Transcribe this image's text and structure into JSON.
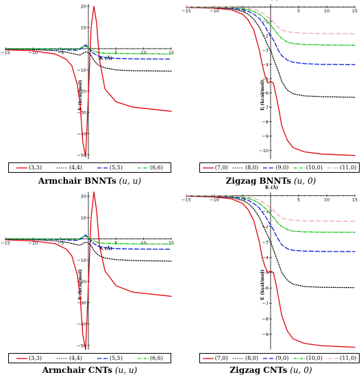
{
  "chart_data": [
    {
      "type": "line",
      "panel": "armchair-bnnt",
      "caption_bold": "Armchair BNNTs",
      "caption_math": "(u, u)",
      "xlabel": "K (Å)",
      "ylabel": "E (kcal/mol)",
      "xlim": [
        -15,
        15
      ],
      "ylim": [
        -52,
        21
      ],
      "x_ticks": [
        -15,
        -10,
        -5,
        5,
        10,
        15
      ],
      "y_ticks": [
        20,
        10,
        -10,
        -20,
        -30,
        -40,
        -50
      ],
      "legend_position": "bottom",
      "x": [
        -15,
        -10,
        -6,
        -4,
        -3,
        -2,
        -1.5,
        -1,
        -0.5,
        0,
        0.5,
        1,
        1.5,
        2,
        3,
        5,
        8,
        15
      ],
      "series": [
        {
          "name": "(3,3)",
          "color": "#e0000a",
          "dash": "",
          "values": [
            -0.5,
            -1,
            -2.5,
            -5,
            -8,
            -17,
            -26,
            -44,
            -51,
            -22,
            10,
            20,
            12,
            -5,
            -19,
            -25,
            -27.5,
            -29.5
          ]
        },
        {
          "name": "(4,4)",
          "color": "#000000",
          "dash": "1.2,2",
          "values": [
            -0.2,
            -0.4,
            -0.9,
            -1.6,
            -2.2,
            -2.8,
            -3,
            -2.2,
            -1.5,
            -1.8,
            -3.2,
            -5.5,
            -7,
            -8,
            -9,
            -10,
            -10.4,
            -10.6
          ]
        },
        {
          "name": "(5,5)",
          "color": "#0018d8",
          "dash": "6,3",
          "values": [
            0,
            -0.1,
            -0.3,
            -0.5,
            -0.7,
            -0.7,
            -0.3,
            0.8,
            1.8,
            0.6,
            -1.3,
            -2.3,
            -3,
            -3.7,
            -4.2,
            -4.6,
            -4.8,
            -4.9
          ]
        },
        {
          "name": "(6,6)",
          "color": "#00c000",
          "dash": "4,2,1,2",
          "values": [
            0,
            0,
            -0.1,
            -0.2,
            -0.3,
            -0.2,
            0.2,
            0.9,
            1.2,
            0.5,
            -0.6,
            -1.2,
            -1.6,
            -1.9,
            -2.1,
            -2.3,
            -2.4,
            -2.5
          ]
        }
      ]
    },
    {
      "type": "line",
      "panel": "zigzag-bnnt",
      "caption_bold": "Zigzag BNNTs",
      "caption_math": "(u, 0)",
      "xlabel": "K (Å)",
      "ylabel": "E (kcal/mol)",
      "xlim": [
        -15,
        15
      ],
      "ylim": [
        -10.6,
        0.2
      ],
      "x_ticks": [
        -15,
        -10,
        -5,
        5,
        10,
        15
      ],
      "y_ticks": [
        -1,
        -2,
        -3,
        -4,
        -5,
        -6,
        -7,
        -8,
        -9,
        -10
      ],
      "legend_position": "bottom",
      "x": [
        -15,
        -10,
        -7,
        -5,
        -4,
        -3,
        -2,
        -1.5,
        -1,
        -0.5,
        0,
        0.5,
        1,
        1.5,
        2,
        3,
        4,
        6,
        9,
        15
      ],
      "series": [
        {
          "name": "(7,0)",
          "color": "#e0000a",
          "dash": "",
          "values": [
            -0.03,
            -0.08,
            -0.2,
            -0.5,
            -0.9,
            -1.6,
            -3,
            -4,
            -4.8,
            -5.3,
            -5.2,
            -5.3,
            -6.2,
            -7.2,
            -8.3,
            -9.3,
            -9.8,
            -10.1,
            -10.25,
            -10.35
          ]
        },
        {
          "name": "(8,0)",
          "color": "#000000",
          "dash": "1.2,2",
          "values": [
            -0.02,
            -0.05,
            -0.12,
            -0.3,
            -0.5,
            -0.85,
            -1.4,
            -1.8,
            -2.2,
            -2.7,
            -3,
            -3.6,
            -4.1,
            -4.6,
            -5.2,
            -5.8,
            -6.05,
            -6.2,
            -6.25,
            -6.3
          ]
        },
        {
          "name": "(9,0)",
          "color": "#0018d8",
          "dash": "6,3",
          "values": [
            -0.01,
            -0.03,
            -0.08,
            -0.18,
            -0.3,
            -0.5,
            -0.8,
            -1.05,
            -1.35,
            -1.7,
            -2,
            -2.3,
            -2.7,
            -3.1,
            -3.4,
            -3.7,
            -3.85,
            -3.95,
            -4,
            -4.02
          ]
        },
        {
          "name": "(10,0)",
          "color": "#00c000",
          "dash": "4,2,1,2",
          "values": [
            0,
            -0.02,
            -0.05,
            -0.1,
            -0.18,
            -0.3,
            -0.5,
            -0.65,
            -0.85,
            -1.05,
            -1.25,
            -1.5,
            -1.75,
            -2,
            -2.2,
            -2.45,
            -2.55,
            -2.62,
            -2.65,
            -2.67
          ]
        },
        {
          "name": "(11,0)",
          "color": "#f0a4ac",
          "dash": "6,4",
          "values": [
            0,
            -0.01,
            -0.03,
            -0.06,
            -0.1,
            -0.16,
            -0.3,
            -0.4,
            -0.55,
            -0.7,
            -0.85,
            -1.05,
            -1.25,
            -1.45,
            -1.6,
            -1.72,
            -1.78,
            -1.83,
            -1.85,
            -1.87
          ]
        }
      ]
    },
    {
      "type": "line",
      "panel": "armchair-cnt",
      "caption_bold": "Armchair CNTs",
      "caption_math": "(u, u)",
      "xlabel": "K (Å)",
      "ylabel": "E (kcal/mol)",
      "xlim": [
        -15,
        15
      ],
      "ylim": [
        -52,
        22
      ],
      "x_ticks": [
        -15,
        -10,
        -5,
        5,
        10,
        15
      ],
      "y_ticks": [
        20,
        10,
        -10,
        -20,
        -30,
        -40,
        -50
      ],
      "legend_position": "bottom",
      "x": [
        -15,
        -10,
        -6,
        -4,
        -3,
        -2,
        -1.5,
        -1,
        -0.5,
        0,
        0.5,
        1,
        1.5,
        2,
        3,
        5,
        8,
        15
      ],
      "series": [
        {
          "name": "(3,3)",
          "color": "#e0000a",
          "dash": "",
          "values": [
            -0.5,
            -1,
            -2.3,
            -4.8,
            -8,
            -17,
            -27,
            -45,
            -52,
            -22,
            10,
            22,
            13,
            -3,
            -15,
            -22,
            -25,
            -27
          ]
        },
        {
          "name": "(4,4)",
          "color": "#000000",
          "dash": "1.2,2",
          "values": [
            -0.2,
            -0.4,
            -0.9,
            -1.6,
            -2.2,
            -2.8,
            -3,
            -2.3,
            -1.6,
            -1.9,
            -3.3,
            -5.5,
            -7,
            -8,
            -9,
            -9.8,
            -10.2,
            -10.5
          ]
        },
        {
          "name": "(5,5)",
          "color": "#0018d8",
          "dash": "6,3",
          "values": [
            0,
            -0.1,
            -0.3,
            -0.5,
            -0.7,
            -0.7,
            -0.3,
            0.8,
            1.8,
            0.6,
            -1.3,
            -2.3,
            -3,
            -3.7,
            -4.2,
            -4.6,
            -4.8,
            -4.9
          ]
        },
        {
          "name": "(6,6)",
          "color": "#00c000",
          "dash": "4,2,1,2",
          "values": [
            0,
            0,
            -0.1,
            -0.2,
            -0.3,
            -0.2,
            0.2,
            0.9,
            1.2,
            0.5,
            -0.6,
            -1.2,
            -1.6,
            -1.9,
            -2.1,
            -2.3,
            -2.4,
            -2.5
          ]
        }
      ]
    },
    {
      "type": "line",
      "panel": "zigzag-cnt",
      "caption_bold": "Zigzag CNTs",
      "caption_math": "(u, 0)",
      "xlabel": "K (Å)",
      "ylabel": "E (kcal/mol)",
      "xlim": [
        -15,
        15
      ],
      "ylim": [
        -10,
        0.2
      ],
      "x_ticks": [
        -15,
        -10,
        -5,
        5,
        10,
        15
      ],
      "y_ticks": [
        -1,
        -2,
        -3,
        -4,
        -5,
        -6,
        -7,
        -8,
        -9
      ],
      "legend_position": "bottom",
      "x": [
        -15,
        -10,
        -7,
        -5,
        -4,
        -3,
        -2,
        -1.5,
        -1,
        -0.5,
        0,
        0.5,
        1,
        1.5,
        2,
        3,
        4,
        6,
        9,
        15
      ],
      "series": [
        {
          "name": "(7,0)",
          "color": "#e0000a",
          "dash": "",
          "values": [
            -0.03,
            -0.08,
            -0.2,
            -0.5,
            -0.9,
            -1.6,
            -3,
            -4,
            -4.6,
            -5,
            -4.9,
            -5,
            -5.8,
            -6.8,
            -7.8,
            -8.8,
            -9.3,
            -9.6,
            -9.75,
            -9.85
          ]
        },
        {
          "name": "(8,0)",
          "color": "#000000",
          "dash": "1.2,2",
          "values": [
            -0.02,
            -0.05,
            -0.12,
            -0.3,
            -0.5,
            -0.85,
            -1.4,
            -1.8,
            -2.2,
            -2.6,
            -3,
            -3.5,
            -4,
            -4.5,
            -5,
            -5.5,
            -5.75,
            -5.9,
            -5.95,
            -5.98
          ]
        },
        {
          "name": "(9,0)",
          "color": "#0018d8",
          "dash": "6,3",
          "values": [
            -0.01,
            -0.03,
            -0.08,
            -0.18,
            -0.3,
            -0.5,
            -0.8,
            -1.05,
            -1.3,
            -1.6,
            -1.9,
            -2.2,
            -2.6,
            -2.9,
            -3.2,
            -3.45,
            -3.55,
            -3.6,
            -3.62,
            -3.63
          ]
        },
        {
          "name": "(10,0)",
          "color": "#00c000",
          "dash": "4,2,1,2",
          "values": [
            0,
            -0.02,
            -0.05,
            -0.1,
            -0.18,
            -0.3,
            -0.5,
            -0.65,
            -0.8,
            -1,
            -1.2,
            -1.4,
            -1.65,
            -1.85,
            -2,
            -2.2,
            -2.3,
            -2.35,
            -2.37,
            -2.38
          ]
        },
        {
          "name": "(11,0)",
          "color": "#f0a4ac",
          "dash": "6,4",
          "values": [
            0,
            -0.01,
            -0.03,
            -0.06,
            -0.1,
            -0.16,
            -0.3,
            -0.4,
            -0.5,
            -0.65,
            -0.8,
            -0.95,
            -1.15,
            -1.3,
            -1.45,
            -1.55,
            -1.6,
            -1.63,
            -1.65,
            -1.66
          ]
        }
      ]
    }
  ]
}
